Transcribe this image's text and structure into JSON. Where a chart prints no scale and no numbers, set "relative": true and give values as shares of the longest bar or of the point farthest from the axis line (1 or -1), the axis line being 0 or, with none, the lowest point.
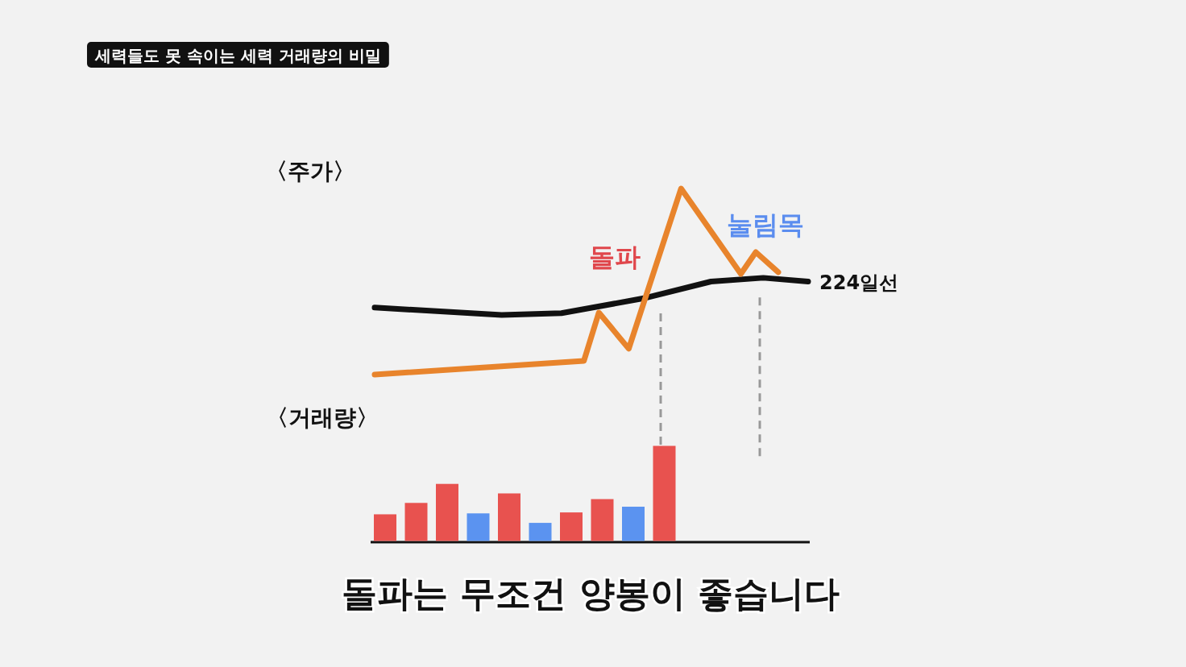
{
  "chart_data": [
    {
      "type": "line",
      "title": "〈주가〉",
      "relative": true,
      "categories": [
        null,
        null,
        null,
        null,
        null,
        null,
        null,
        null,
        null,
        null,
        null,
        null,
        null,
        null,
        null,
        null,
        null,
        null,
        null,
        null,
        null,
        null,
        null,
        null,
        null,
        null,
        null,
        null,
        null,
        null,
        null,
        null,
        null,
        null,
        null,
        null,
        null,
        null,
        null,
        null,
        null,
        null,
        null,
        null,
        null,
        null,
        null,
        null,
        null,
        null,
        null,
        null,
        null,
        null,
        null,
        null,
        null,
        null,
        null
      ],
      "series": [
        {
          "color": "#e8842c",
          "values": [
            0,
            null,
            null,
            null,
            null,
            null,
            null,
            null,
            null,
            null,
            null,
            null,
            null,
            null,
            null,
            null,
            null,
            null,
            null,
            null,
            null,
            null,
            null,
            null,
            null,
            null,
            null,
            null,
            0.074,
            null,
            0.333,
            null,
            null,
            null,
            0.139,
            null,
            null,
            null,
            null,
            null,
            null,
            1,
            null,
            null,
            null,
            null,
            null,
            null,
            null,
            0.541,
            null,
            0.658,
            null,
            null,
            0.55,
            null,
            null,
            null,
            null
          ]
        },
        {
          "name": "224일선",
          "color": "#111111",
          "values": [
            0.36,
            null,
            null,
            null,
            null,
            null,
            null,
            null,
            null,
            null,
            null,
            null,
            null,
            null,
            null,
            null,
            null,
            0.32,
            null,
            null,
            null,
            null,
            null,
            null,
            null,
            0.33,
            null,
            null,
            null,
            null,
            null,
            null,
            null,
            null,
            null,
            null,
            0.41,
            null,
            null,
            null,
            null,
            null,
            null,
            null,
            null,
            0.5,
            null,
            null,
            null,
            null,
            null,
            null,
            0.52,
            null,
            null,
            null,
            null,
            null,
            0.5
          ]
        }
      ],
      "annotations": [
        "세력들도 못 속이는 세력 거래량의 비밀",
        "돌파",
        "눌림목"
      ]
    },
    {
      "type": "bar",
      "title": "〈거래량〉",
      "relative": true,
      "categories": [
        null,
        null,
        null,
        null,
        null,
        null,
        null,
        null,
        null,
        null
      ],
      "values": [
        0.28,
        0.4,
        0.6,
        0.29,
        0.5,
        0.19,
        0.3,
        0.44,
        0.36,
        1
      ],
      "colors": [
        "#e8524f",
        "#e8524f",
        "#e8524f",
        "#5b93f0",
        "#e8524f",
        "#5b93f0",
        "#e8524f",
        "#e8524f",
        "#5b93f0",
        "#e8524f"
      ],
      "annotations": [
        "돌파는 무조건 양봉이 좋습니다"
      ]
    }
  ]
}
